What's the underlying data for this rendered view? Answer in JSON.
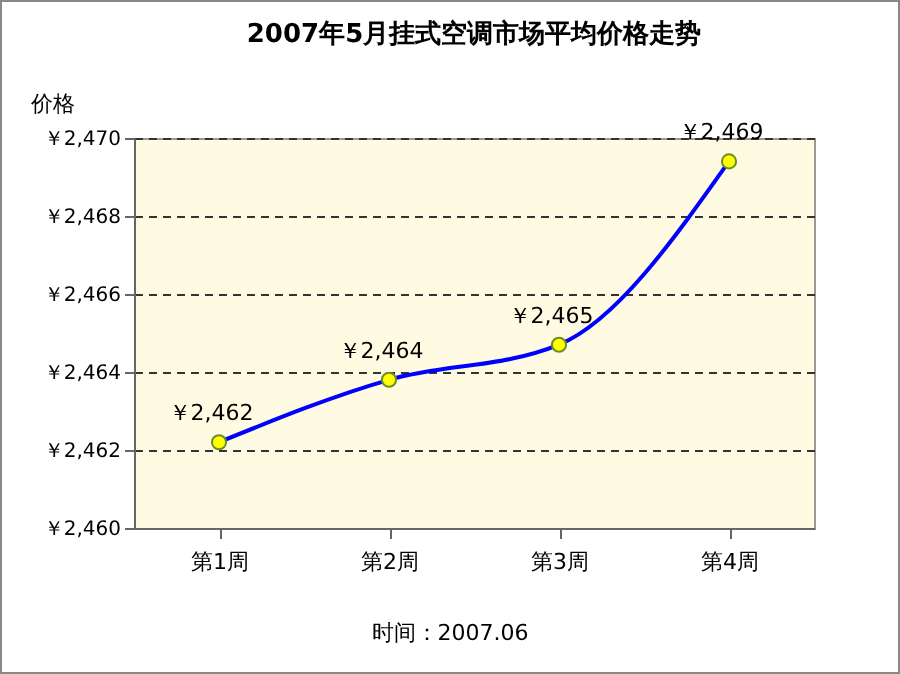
{
  "chart_data": {
    "type": "line",
    "title": "2007年5月挂式空调市场平均价格走势",
    "ylabel": "价格",
    "categories": [
      "第1周",
      "第2周",
      "第3周",
      "第4周"
    ],
    "series": [
      {
        "color": "#0000ff",
        "values": [
          2462.2,
          2463.8,
          2464.7,
          2469.4
        ],
        "value_labels": [
          "￥2,462",
          "￥2,464",
          "￥2,465",
          "￥2,469"
        ]
      }
    ],
    "ylim": [
      2460,
      2470
    ],
    "yticks": [
      {
        "value": 2460,
        "label": "￥2,460"
      },
      {
        "value": 2462,
        "label": "￥2,462"
      },
      {
        "value": 2464,
        "label": "￥2,464"
      },
      {
        "value": 2466,
        "label": "￥2,466"
      },
      {
        "value": 2468,
        "label": "￥2,468"
      },
      {
        "value": 2470,
        "label": "￥2,470"
      }
    ],
    "grid": "y",
    "marker": "circle",
    "line_style": "solid",
    "annotations": [
      "时间：2007.06"
    ]
  }
}
